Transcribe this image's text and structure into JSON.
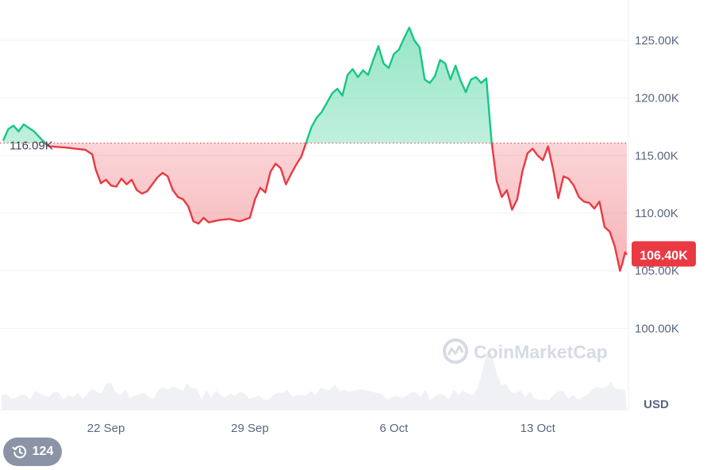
{
  "chart_data": {
    "type": "line",
    "currency": "USD",
    "reference": {
      "label": "116.09K",
      "value": 116.09
    },
    "current": {
      "label": "106.40K",
      "value": 106.4
    },
    "ylim": [
      96.0,
      128.5
    ],
    "y_ticks": [
      {
        "value": 100,
        "label": "100.00K"
      },
      {
        "value": 105,
        "label": "105.00K"
      },
      {
        "value": 110,
        "label": "110.00K"
      },
      {
        "value": 115,
        "label": "115.00K"
      },
      {
        "value": 120,
        "label": "120.00K"
      },
      {
        "value": 125,
        "label": "125.00K"
      }
    ],
    "x_range": [
      "2025-09-17",
      "2025-10-17 08:00"
    ],
    "x_ticks": [
      {
        "date": "2025-09-22",
        "label": "22 Sep"
      },
      {
        "date": "2025-09-29",
        "label": "29 Sep"
      },
      {
        "date": "2025-10-06",
        "label": "6 Oct"
      },
      {
        "date": "2025-10-13",
        "label": "13 Oct"
      }
    ],
    "series": [
      {
        "values": [
          [
            "2025-09-17 00:00",
            116.3
          ],
          [
            "2025-09-17 06:00",
            117.3
          ],
          [
            "2025-09-17 12:00",
            117.6
          ],
          [
            "2025-09-17 18:00",
            117.1
          ],
          [
            "2025-09-18 00:00",
            117.7
          ],
          [
            "2025-09-18 12:00",
            117.1
          ],
          [
            "2025-09-19 02:00",
            116.0
          ],
          [
            "2025-09-19 06:00",
            115.8
          ],
          [
            "2025-09-20 00:00",
            115.7
          ],
          [
            "2025-09-20 12:00",
            115.6
          ],
          [
            "2025-09-21 00:00",
            115.5
          ],
          [
            "2025-09-21 08:00",
            115.1
          ],
          [
            "2025-09-21 12:00",
            113.8
          ],
          [
            "2025-09-21 18:00",
            112.6
          ],
          [
            "2025-09-22 00:00",
            112.9
          ],
          [
            "2025-09-22 06:00",
            112.4
          ],
          [
            "2025-09-22 12:00",
            112.3
          ],
          [
            "2025-09-22 18:00",
            113.0
          ],
          [
            "2025-09-23 00:00",
            112.5
          ],
          [
            "2025-09-23 06:00",
            112.9
          ],
          [
            "2025-09-23 12:00",
            112.0
          ],
          [
            "2025-09-23 18:00",
            111.7
          ],
          [
            "2025-09-24 00:00",
            111.9
          ],
          [
            "2025-09-24 06:00",
            112.5
          ],
          [
            "2025-09-24 12:00",
            113.1
          ],
          [
            "2025-09-24 18:00",
            113.5
          ],
          [
            "2025-09-25 00:00",
            113.2
          ],
          [
            "2025-09-25 06:00",
            112.0
          ],
          [
            "2025-09-25 12:00",
            111.4
          ],
          [
            "2025-09-25 18:00",
            111.2
          ],
          [
            "2025-09-26 00:00",
            110.6
          ],
          [
            "2025-09-26 06:00",
            109.3
          ],
          [
            "2025-09-26 12:00",
            109.1
          ],
          [
            "2025-09-26 18:00",
            109.6
          ],
          [
            "2025-09-27 00:00",
            109.2
          ],
          [
            "2025-09-27 12:00",
            109.4
          ],
          [
            "2025-09-28 00:00",
            109.5
          ],
          [
            "2025-09-28 12:00",
            109.3
          ],
          [
            "2025-09-29 00:00",
            109.6
          ],
          [
            "2025-09-29 06:00",
            111.2
          ],
          [
            "2025-09-29 12:00",
            112.2
          ],
          [
            "2025-09-29 18:00",
            111.8
          ],
          [
            "2025-09-30 00:00",
            113.6
          ],
          [
            "2025-09-30 06:00",
            114.3
          ],
          [
            "2025-09-30 12:00",
            113.9
          ],
          [
            "2025-09-30 18:00",
            112.5
          ],
          [
            "2025-10-01 00:00",
            113.4
          ],
          [
            "2025-10-01 06:00",
            114.2
          ],
          [
            "2025-10-01 12:00",
            114.9
          ],
          [
            "2025-10-01 18:00",
            116.2
          ],
          [
            "2025-10-02 00:00",
            117.5
          ],
          [
            "2025-10-02 06:00",
            118.3
          ],
          [
            "2025-10-02 12:00",
            118.8
          ],
          [
            "2025-10-02 18:00",
            119.6
          ],
          [
            "2025-10-03 00:00",
            120.4
          ],
          [
            "2025-10-03 06:00",
            120.8
          ],
          [
            "2025-10-03 12:00",
            120.2
          ],
          [
            "2025-10-03 18:00",
            122.0
          ],
          [
            "2025-10-04 00:00",
            122.5
          ],
          [
            "2025-10-04 06:00",
            121.8
          ],
          [
            "2025-10-04 12:00",
            122.4
          ],
          [
            "2025-10-04 18:00",
            122.0
          ],
          [
            "2025-10-05 00:00",
            123.3
          ],
          [
            "2025-10-05 06:00",
            124.5
          ],
          [
            "2025-10-05 12:00",
            123.0
          ],
          [
            "2025-10-05 18:00",
            122.6
          ],
          [
            "2025-10-06 00:00",
            123.8
          ],
          [
            "2025-10-06 06:00",
            124.2
          ],
          [
            "2025-10-06 12:00",
            125.2
          ],
          [
            "2025-10-06 18:00",
            126.1
          ],
          [
            "2025-10-07 00:00",
            125.0
          ],
          [
            "2025-10-07 06:00",
            124.4
          ],
          [
            "2025-10-07 12:00",
            121.6
          ],
          [
            "2025-10-07 18:00",
            121.3
          ],
          [
            "2025-10-08 00:00",
            121.9
          ],
          [
            "2025-10-08 06:00",
            123.3
          ],
          [
            "2025-10-08 12:00",
            123.0
          ],
          [
            "2025-10-08 18:00",
            121.6
          ],
          [
            "2025-10-09 00:00",
            122.8
          ],
          [
            "2025-10-09 06:00",
            121.5
          ],
          [
            "2025-10-09 12:00",
            120.5
          ],
          [
            "2025-10-09 18:00",
            121.6
          ],
          [
            "2025-10-10 00:00",
            121.8
          ],
          [
            "2025-10-10 06:00",
            121.3
          ],
          [
            "2025-10-10 12:00",
            121.7
          ],
          [
            "2025-10-10 18:00",
            116.3
          ],
          [
            "2025-10-11 00:00",
            112.8
          ],
          [
            "2025-10-11 06:00",
            111.4
          ],
          [
            "2025-10-11 12:00",
            112.0
          ],
          [
            "2025-10-11 18:00",
            110.3
          ],
          [
            "2025-10-12 00:00",
            111.2
          ],
          [
            "2025-10-12 06:00",
            113.6
          ],
          [
            "2025-10-12 12:00",
            115.2
          ],
          [
            "2025-10-12 18:00",
            115.6
          ],
          [
            "2025-10-13 00:00",
            115.0
          ],
          [
            "2025-10-13 06:00",
            114.6
          ],
          [
            "2025-10-13 12:00",
            115.8
          ],
          [
            "2025-10-13 18:00",
            113.8
          ],
          [
            "2025-10-14 00:00",
            111.3
          ],
          [
            "2025-10-14 06:00",
            113.2
          ],
          [
            "2025-10-14 12:00",
            113.0
          ],
          [
            "2025-10-14 18:00",
            112.4
          ],
          [
            "2025-10-15 00:00",
            111.4
          ],
          [
            "2025-10-15 06:00",
            111.0
          ],
          [
            "2025-10-15 12:00",
            110.9
          ],
          [
            "2025-10-15 18:00",
            110.4
          ],
          [
            "2025-10-16 00:00",
            111.0
          ],
          [
            "2025-10-16 06:00",
            108.8
          ],
          [
            "2025-10-16 12:00",
            108.4
          ],
          [
            "2025-10-16 18:00",
            107.1
          ],
          [
            "2025-10-17 00:00",
            105.0
          ],
          [
            "2025-10-17 03:00",
            105.7
          ],
          [
            "2025-10-17 06:00",
            106.6
          ],
          [
            "2025-10-17 08:00",
            106.4
          ]
        ]
      }
    ]
  },
  "watermark": {
    "text": "CoinMarketCap"
  },
  "history_button": {
    "count": "124",
    "icon": "history-icon"
  },
  "colors": {
    "up": "#16c784",
    "down": "#ea3943",
    "grid": "#eff2f5",
    "badge": "#ea3943"
  }
}
